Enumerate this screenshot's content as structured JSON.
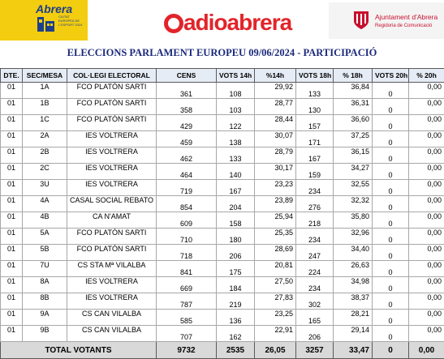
{
  "header": {
    "brand_left": "Abrera",
    "brand_left_sub": "CIUTAT EUROPEA DE L'ESPORT 2024",
    "brand_center": "adioabrera",
    "brand_right_title": "Ajuntament d'Abrera",
    "brand_right_sub": "Regidoria de Comunicació"
  },
  "title": "ELECCIONS PARLAMENT EUROPEU 09/06/2024 - PARTICIPACIÓ",
  "table": {
    "columns": [
      "DTE.",
      "SEC/MESA",
      "COL·LEGI ELECTORAL",
      "CENS",
      "VOTS 14h",
      "%14h",
      "VOTS 18h",
      "% 18h",
      "VOTS 20h",
      "% 20h"
    ],
    "rows": [
      {
        "dte": "01",
        "mesa": "1A",
        "colegi": "FCO PLATÓN SARTI",
        "cens": "361",
        "v14": "108",
        "p14": "29,92",
        "v18": "133",
        "p18": "36,84",
        "v20": "0",
        "p20": "0,00"
      },
      {
        "dte": "01",
        "mesa": "1B",
        "colegi": "FCO PLATÓN SARTI",
        "cens": "358",
        "v14": "103",
        "p14": "28,77",
        "v18": "130",
        "p18": "36,31",
        "v20": "0",
        "p20": "0,00"
      },
      {
        "dte": "01",
        "mesa": "1C",
        "colegi": "FCO PLATÓN SARTI",
        "cens": "429",
        "v14": "122",
        "p14": "28,44",
        "v18": "157",
        "p18": "36,60",
        "v20": "0",
        "p20": "0,00"
      },
      {
        "dte": "01",
        "mesa": "2A",
        "colegi": "IES VOLTRERA",
        "cens": "459",
        "v14": "138",
        "p14": "30,07",
        "v18": "171",
        "p18": "37,25",
        "v20": "0",
        "p20": "0,00"
      },
      {
        "dte": "01",
        "mesa": "2B",
        "colegi": "IES VOLTRERA",
        "cens": "462",
        "v14": "133",
        "p14": "28,79",
        "v18": "167",
        "p18": "36,15",
        "v20": "0",
        "p20": "0,00"
      },
      {
        "dte": "01",
        "mesa": "2C",
        "colegi": "IES VOLTRERA",
        "cens": "464",
        "v14": "140",
        "p14": "30,17",
        "v18": "159",
        "p18": "34,27",
        "v20": "0",
        "p20": "0,00"
      },
      {
        "dte": "01",
        "mesa": "3U",
        "colegi": "IES VOLTRERA",
        "cens": "719",
        "v14": "167",
        "p14": "23,23",
        "v18": "234",
        "p18": "32,55",
        "v20": "0",
        "p20": "0,00"
      },
      {
        "dte": "01",
        "mesa": "4A",
        "colegi": "CASAL SOCIAL REBATO",
        "cens": "854",
        "v14": "204",
        "p14": "23,89",
        "v18": "276",
        "p18": "32,32",
        "v20": "0",
        "p20": "0,00"
      },
      {
        "dte": "01",
        "mesa": "4B",
        "colegi": "CA N'AMAT",
        "cens": "609",
        "v14": "158",
        "p14": "25,94",
        "v18": "218",
        "p18": "35,80",
        "v20": "0",
        "p20": "0,00"
      },
      {
        "dte": "01",
        "mesa": "5A",
        "colegi": "FCO PLATÓN SARTI",
        "cens": "710",
        "v14": "180",
        "p14": "25,35",
        "v18": "234",
        "p18": "32,96",
        "v20": "0",
        "p20": "0,00"
      },
      {
        "dte": "01",
        "mesa": "5B",
        "colegi": "FCO PLATÓN SARTI",
        "cens": "718",
        "v14": "206",
        "p14": "28,69",
        "v18": "247",
        "p18": "34,40",
        "v20": "0",
        "p20": "0,00"
      },
      {
        "dte": "01",
        "mesa": "7U",
        "colegi": "CS STA Mª VILALBA",
        "cens": "841",
        "v14": "175",
        "p14": "20,81",
        "v18": "224",
        "p18": "26,63",
        "v20": "0",
        "p20": "0,00"
      },
      {
        "dte": "01",
        "mesa": "8A",
        "colegi": "IES VOLTRERA",
        "cens": "669",
        "v14": "184",
        "p14": "27,50",
        "v18": "234",
        "p18": "34,98",
        "v20": "0",
        "p20": "0,00"
      },
      {
        "dte": "01",
        "mesa": "8B",
        "colegi": "IES VOLTRERA",
        "cens": "787",
        "v14": "219",
        "p14": "27,83",
        "v18": "302",
        "p18": "38,37",
        "v20": "0",
        "p20": "0,00"
      },
      {
        "dte": "01",
        "mesa": "9A",
        "colegi": "CS CAN VILALBA",
        "cens": "585",
        "v14": "136",
        "p14": "23,25",
        "v18": "165",
        "p18": "28,21",
        "v20": "0",
        "p20": "0,00"
      },
      {
        "dte": "01",
        "mesa": "9B",
        "colegi": "CS CAN VILALBA",
        "cens": "707",
        "v14": "162",
        "p14": "22,91",
        "v18": "206",
        "p18": "29,14",
        "v20": "0",
        "p20": "0,00"
      }
    ],
    "total": {
      "label": "TOTAL VOTANTS",
      "cens": "9732",
      "v14": "2535",
      "p14": "26,05",
      "v18": "3257",
      "p18": "33,47",
      "v20": "0",
      "p20": "0,00"
    }
  },
  "colors": {
    "brand_red": "#e2242a",
    "title_blue": "#1b2a7a",
    "header_bg": "#e6ecf6",
    "total_bg": "#d9d9d9",
    "abrera_yellow": "#f3cd10"
  }
}
